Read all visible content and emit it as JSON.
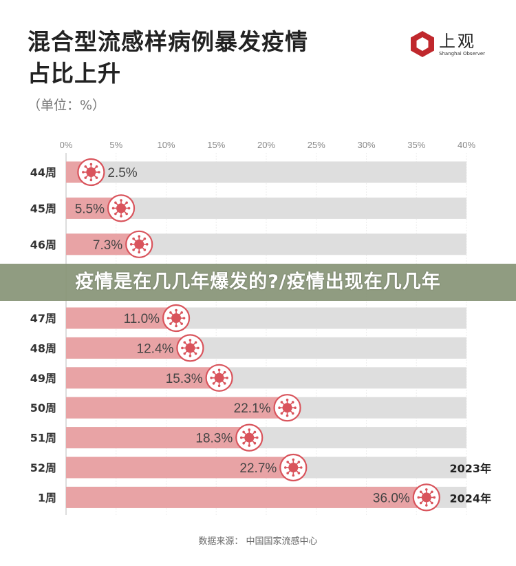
{
  "header": {
    "title_line1": "混合型流感样病例暴发疫情",
    "title_line2": "占比上升",
    "unit": "（单位：%）"
  },
  "logo": {
    "cn": "上观",
    "en": "Shanghai Observer",
    "color": "#c0282d"
  },
  "source": "数据来源：  中国国家流感中心",
  "banner": {
    "text": "疫情是在几几年爆发的?/疫情出现在几几年"
  },
  "colors": {
    "bar": "#e8a3a5",
    "track": "#dedede",
    "virus": "#d9545c"
  },
  "chart_data": {
    "type": "bar",
    "orientation": "horizontal",
    "categories": [
      "44周",
      "45周",
      "46周",
      "47周",
      "48周",
      "49周",
      "50周",
      "51周",
      "52周",
      "1周"
    ],
    "values": [
      2.5,
      5.5,
      7.3,
      11.0,
      12.4,
      15.3,
      22.1,
      18.3,
      22.7,
      36.0
    ],
    "labels": [
      "2.5%",
      "5.5%",
      "7.3%",
      "11.0%",
      "12.4%",
      "15.3%",
      "22.1%",
      "18.3%",
      "22.7%",
      "36.0%"
    ],
    "xlim": [
      0,
      40
    ],
    "ticks": [
      "0%",
      "5%",
      "10%",
      "15%",
      "20%",
      "25%",
      "30%",
      "35%",
      "40%"
    ],
    "annotations": [
      {
        "category": "52周",
        "text": "2023年"
      },
      {
        "category": "1周",
        "text": "2024年"
      }
    ],
    "grid": true
  }
}
